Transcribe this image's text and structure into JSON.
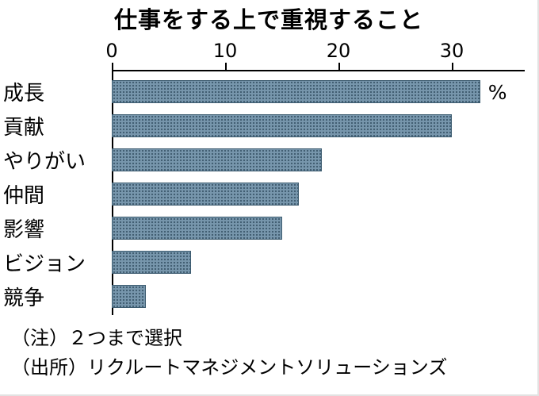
{
  "chart_data": {
    "type": "bar",
    "orientation": "horizontal",
    "title": "仕事をする上で重視すること",
    "unit_label": "%",
    "categories": [
      "成長",
      "貢献",
      "やりがい",
      "仲間",
      "影響",
      "ビジョン",
      "競争"
    ],
    "values": [
      32.5,
      30,
      18.5,
      16.5,
      15,
      7,
      3
    ],
    "x_ticks": [
      0,
      10,
      20,
      30
    ],
    "xlim": [
      0,
      36
    ],
    "grid": false,
    "legend": "none",
    "bar_color": "#7796ac",
    "bar_dot_color": "#3d5c70",
    "axis_color": "#000000",
    "notes": [
      "（注）２つまで選択",
      "（出所）リクルートマネジメントソリューションズ"
    ]
  }
}
